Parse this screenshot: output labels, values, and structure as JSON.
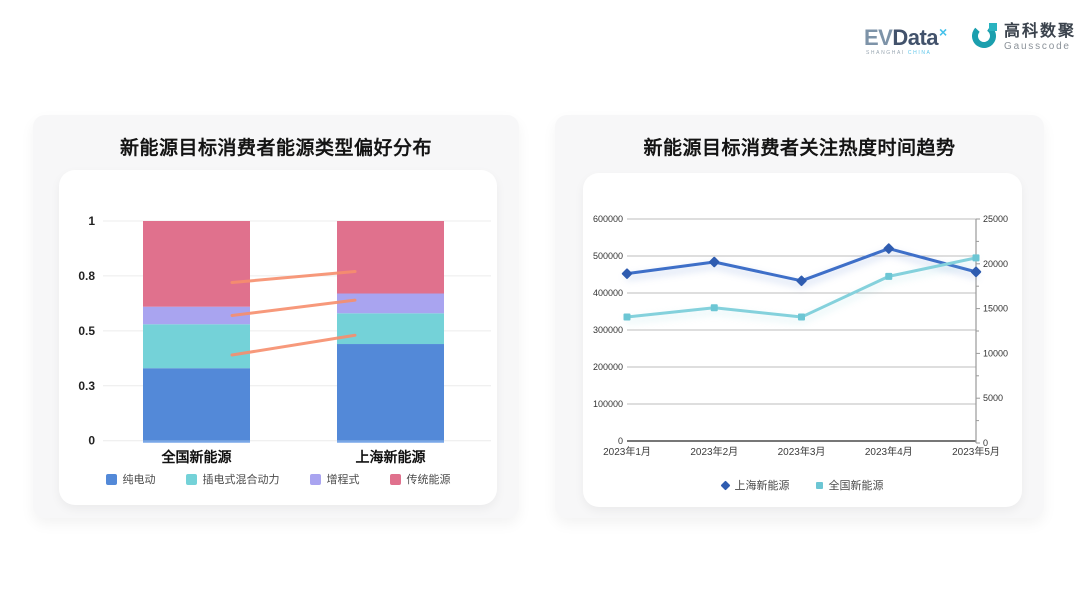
{
  "header": {
    "evdata": {
      "ev": "EV",
      "word": "Data",
      "sup": "×",
      "sub1": "SHANGHAI",
      "sub2": "CHINA"
    },
    "gausscode": {
      "cn": "高科数聚",
      "en": "Gausscode"
    }
  },
  "colors": {
    "connector": "#f78e6d",
    "grid_light": "#ececec",
    "grid_mid": "#bdbdbd",
    "axis_dark": "#4a4a4a",
    "axis_side": "#9a9a9a",
    "bar_baseline": "#79a7e8",
    "tick_text": "#333333",
    "logo_teal": "#1b9fae"
  },
  "chart_data": [
    {
      "type": "bar",
      "stacked": true,
      "title": "新能源目标消费者能源类型偏好分布",
      "categories": [
        "全国新能源",
        "上海新能源"
      ],
      "series": [
        {
          "name": "纯电动",
          "color": "#5389d8",
          "values": [
            0.33,
            0.44
          ]
        },
        {
          "name": "插电式混合动力",
          "color": "#74d2d8",
          "values": [
            0.2,
            0.14
          ]
        },
        {
          "name": "增程式",
          "color": "#a9a4f0",
          "values": [
            0.08,
            0.09
          ]
        },
        {
          "name": "传统能源",
          "color": "#e0718d",
          "values": [
            0.39,
            0.33
          ]
        }
      ],
      "ylim": [
        0,
        1
      ],
      "yticks": {
        "values": [
          0,
          0.25,
          0.5,
          0.75,
          1
        ],
        "labels": [
          "0",
          "0.3",
          "0.5",
          "0.8",
          "1"
        ]
      },
      "connectors": [
        {
          "from": 0.72,
          "to": 0.77
        },
        {
          "from": 0.57,
          "to": 0.64
        },
        {
          "from": 0.39,
          "to": 0.48
        }
      ],
      "grid": true,
      "legend_position": "bottom"
    },
    {
      "type": "line",
      "title": "新能源目标消费者关注热度时间趋势",
      "x": [
        "2023年1月",
        "2023年2月",
        "2023年3月",
        "2023年4月",
        "2023年5月"
      ],
      "series": [
        {
          "name": "上海新能源",
          "axis": "right",
          "color": "#3e6fc8",
          "marker_color": "#2f5cb0",
          "marker": "diamond",
          "values": [
            18900,
            20200,
            18100,
            21700,
            19100
          ]
        },
        {
          "name": "全国新能源",
          "axis": "left",
          "color": "#84d1dc",
          "marker_color": "#6cc6d4",
          "marker": "square",
          "values": [
            335000,
            360000,
            335000,
            445000,
            495000
          ]
        }
      ],
      "left_axis": {
        "ticks": [
          0,
          100000,
          200000,
          300000,
          400000,
          500000,
          600000
        ],
        "max": 600000,
        "labels": [
          "0",
          "100000",
          "200000",
          "300000",
          "400000",
          "500000",
          "600000"
        ]
      },
      "right_axis": {
        "ticks": [
          0,
          5000,
          10000,
          15000,
          20000,
          25000
        ],
        "max": 25000,
        "labels": [
          "0",
          "5000",
          "10000",
          "15000",
          "20000",
          "25000"
        ]
      },
      "grid": true,
      "legend_position": "bottom"
    }
  ]
}
